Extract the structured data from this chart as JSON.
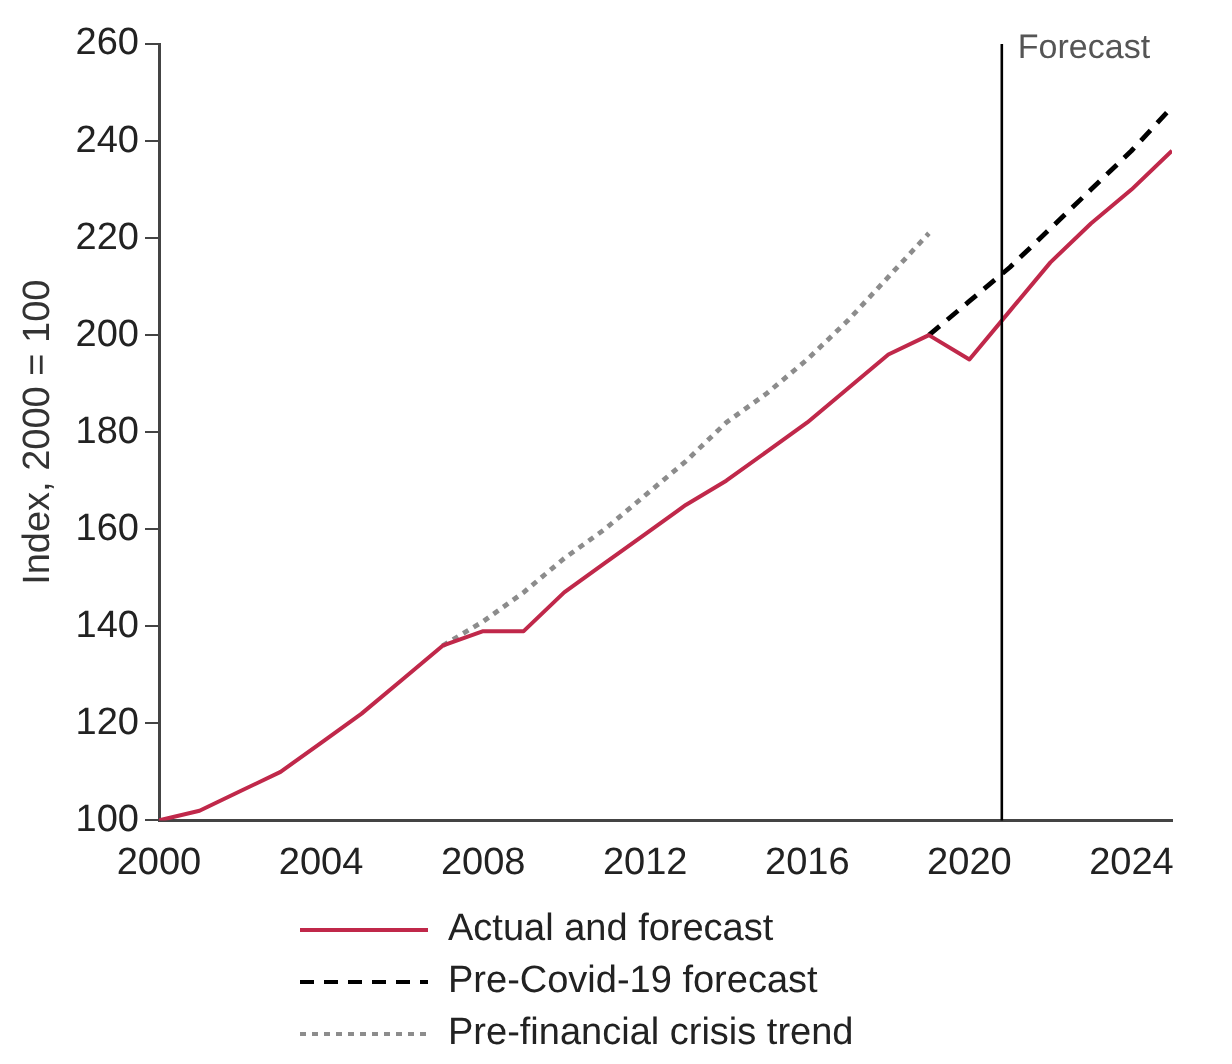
{
  "chart_data": {
    "type": "line",
    "ylabel": "Index, 2000 = 100",
    "xlim": [
      2000,
      2025
    ],
    "xticks": [
      2000,
      2004,
      2008,
      2012,
      2016,
      2020,
      2024
    ],
    "ylim": [
      100,
      260
    ],
    "yticks": [
      100,
      120,
      140,
      160,
      180,
      200,
      220,
      240,
      260
    ],
    "grid": false,
    "legend": "bottom",
    "marker": "none",
    "ref_lines": [
      {
        "axis": "x",
        "value": 2020.8,
        "label": "Forecast",
        "color": "#000000"
      }
    ],
    "series": [
      {
        "name": "Actual and forecast",
        "color": "#c0284a",
        "line_style": "solid",
        "x": [
          2000,
          2001,
          2002,
          2003,
          2004,
          2005,
          2006,
          2007,
          2008,
          2009,
          2010,
          2011,
          2012,
          2013,
          2014,
          2015,
          2016,
          2017,
          2018,
          2019,
          2020,
          2021,
          2022,
          2023,
          2024,
          2025
        ],
        "values": [
          100,
          102,
          106,
          110,
          116,
          122,
          129,
          136,
          139,
          139,
          147,
          153,
          159,
          165,
          170,
          176,
          182,
          189,
          196,
          200,
          195,
          205,
          215,
          223,
          230,
          238
        ]
      },
      {
        "name": "Pre-Covid-19 forecast",
        "color": "#000000",
        "line_style": "dashed",
        "x": [
          2019,
          2020,
          2021,
          2022,
          2023,
          2024,
          2025
        ],
        "values": [
          200,
          207,
          214,
          222,
          230,
          238,
          247
        ]
      },
      {
        "name": "Pre-financial crisis trend",
        "color": "#8c8c8c",
        "line_style": "dotted",
        "x": [
          2007,
          2008,
          2009,
          2010,
          2011,
          2012,
          2013,
          2014,
          2015,
          2016,
          2017,
          2018,
          2019
        ],
        "values": [
          136,
          141,
          147,
          154,
          160,
          167,
          174,
          182,
          188,
          195,
          203,
          212,
          221
        ]
      }
    ]
  }
}
